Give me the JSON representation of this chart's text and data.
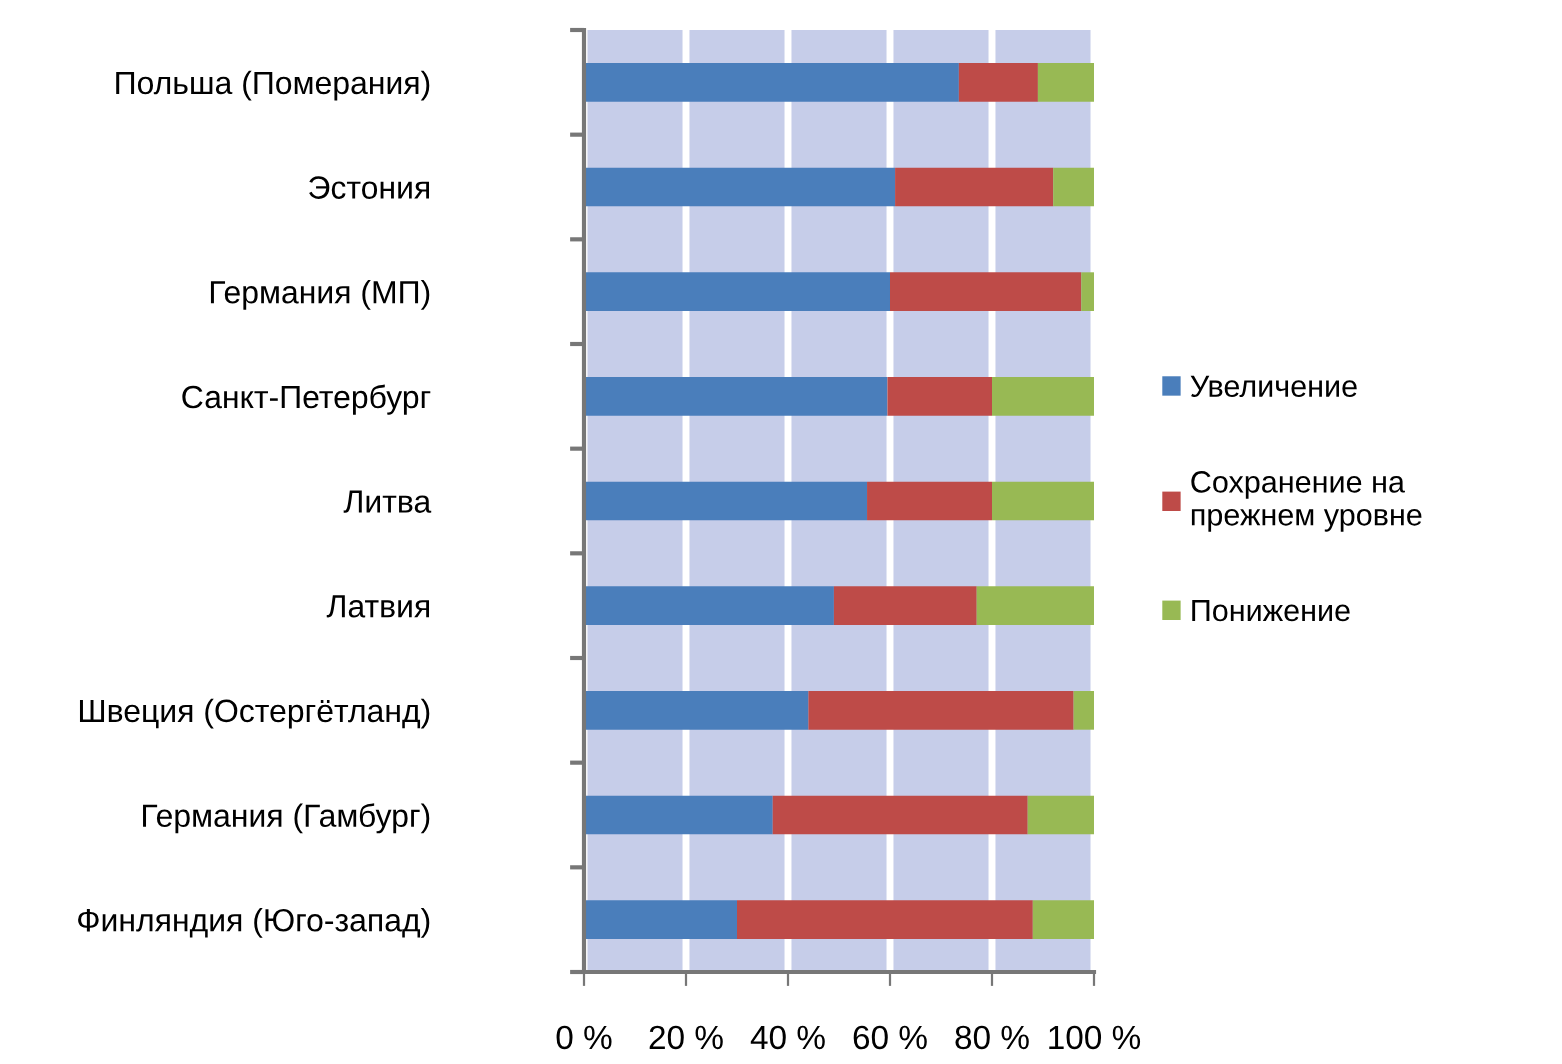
{
  "chart_data": {
    "type": "bar",
    "orientation": "horizontal",
    "stacked": true,
    "categories": [
      "Польша (Померания)",
      "Эстония",
      "Германия (МП)",
      "Санкт-Петербург",
      "Литва",
      "Латвия",
      "Швеция (Остергётланд)",
      "Германия (Гамбург)",
      "Финляндия (Юго-запад)"
    ],
    "series": [
      {
        "name": "Увеличение",
        "color": "#4a7ebb",
        "values": [
          73.5,
          61,
          60,
          59.5,
          55.5,
          49,
          44,
          37,
          30
        ]
      },
      {
        "name": "Сохранение на\nпрежнем уровне",
        "color": "#be4b48",
        "values": [
          15.5,
          31,
          37.5,
          20.5,
          24.5,
          28,
          52,
          50,
          58
        ]
      },
      {
        "name": "Понижение",
        "color": "#98b954",
        "values": [
          11,
          8,
          2.5,
          20,
          20,
          23,
          4,
          13,
          12
        ]
      }
    ],
    "xlim": [
      0,
      100
    ],
    "xticks": [
      {
        "value": 0,
        "label": "0 %"
      },
      {
        "value": 20,
        "label": "20 %"
      },
      {
        "value": 40,
        "label": "40 %"
      },
      {
        "value": 60,
        "label": "60 %"
      },
      {
        "value": 80,
        "label": "80 %"
      },
      {
        "value": 100,
        "label": "100 %"
      }
    ],
    "grid": "x",
    "legend": "right"
  }
}
